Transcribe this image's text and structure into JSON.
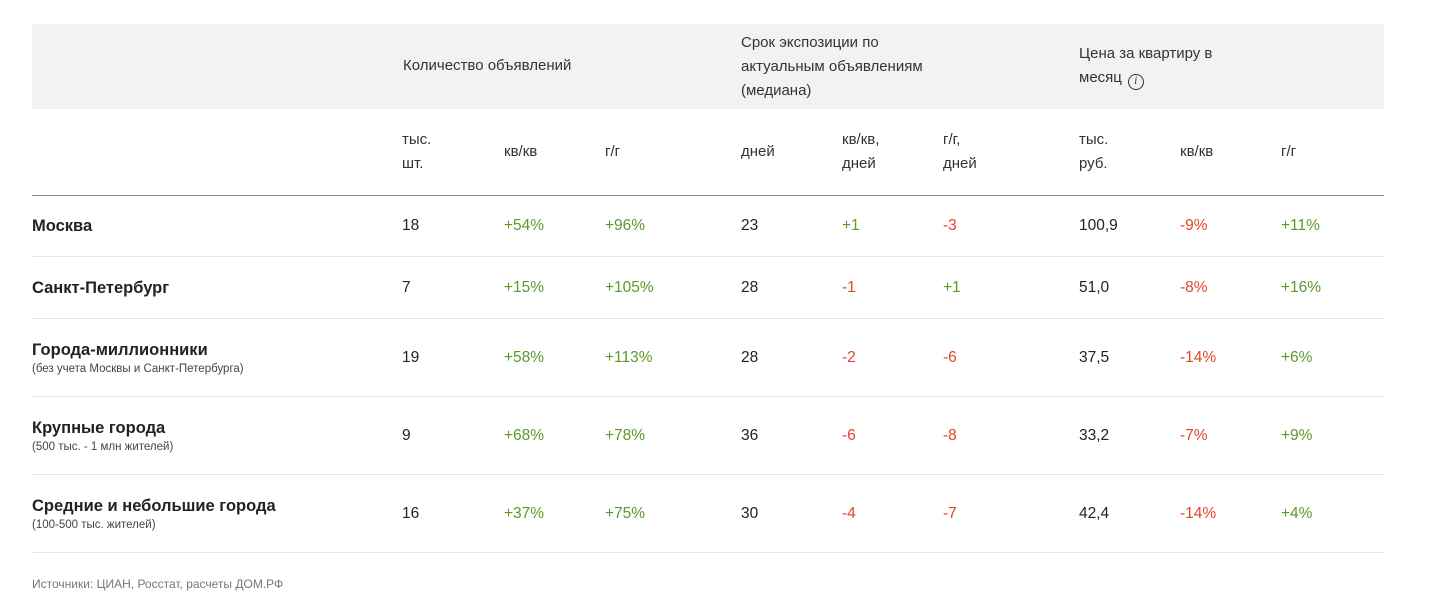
{
  "colors": {
    "header_bg": "#f2f2f2",
    "positive": "#5a9a2a",
    "negative": "#e0452b",
    "text": "#222222"
  },
  "groups": {
    "count": "Количество объявлений",
    "exposure_l1": "Срок экспозиции по",
    "exposure_l2": "актуальным объявлениям",
    "exposure_l3": "(медиана)",
    "price_l1": "Цена за квартиру в",
    "price_l2": "месяц",
    "price_icon": "info-icon"
  },
  "sub": {
    "c1_l1": "тыс.",
    "c1_l2": "шт.",
    "c2": "кв/кв",
    "c3": "г/г",
    "c4": "дней",
    "c5_l1": "кв/кв,",
    "c5_l2": "дней",
    "c6_l1": "г/г,",
    "c6_l2": "дней",
    "c7_l1": "тыс.",
    "c7_l2": "руб.",
    "c8": "кв/кв",
    "c9": "г/г"
  },
  "rows": [
    {
      "name": "Москва",
      "note": "",
      "count": "18",
      "count_qq": "+54%",
      "count_yy": "+96%",
      "days": "23",
      "days_qq": "+1",
      "days_yy": "-3",
      "price": "100,9",
      "price_qq": "-9%",
      "price_yy": "+11%"
    },
    {
      "name": "Санкт-Петербург",
      "note": "",
      "count": "7",
      "count_qq": "+15%",
      "count_yy": "+105%",
      "days": "28",
      "days_qq": "-1",
      "days_yy": "+1",
      "price": "51,0",
      "price_qq": "-8%",
      "price_yy": "+16%"
    },
    {
      "name": "Города-миллионники",
      "note": "(без учета Москвы и Санкт-Петербурга)",
      "count": "19",
      "count_qq": "+58%",
      "count_yy": "+113%",
      "days": "28",
      "days_qq": "-2",
      "days_yy": "-6",
      "price": "37,5",
      "price_qq": "-14%",
      "price_yy": "+6%"
    },
    {
      "name": "Крупные города",
      "note": "(500 тыс. - 1 млн жителей)",
      "count": "9",
      "count_qq": "+68%",
      "count_yy": "+78%",
      "days": "36",
      "days_qq": "-6",
      "days_yy": "-8",
      "price": "33,2",
      "price_qq": "-7%",
      "price_yy": "+9%"
    },
    {
      "name": "Средние и небольшие города",
      "note": "(100-500 тыс. жителей)",
      "count": "16",
      "count_qq": "+37%",
      "count_yy": "+75%",
      "days": "30",
      "days_qq": "-4",
      "days_yy": "-7",
      "price": "42,4",
      "price_qq": "-14%",
      "price_yy": "+4%"
    }
  ],
  "source": "Источники: ЦИАН, Росстат, расчеты ДОМ.РФ"
}
